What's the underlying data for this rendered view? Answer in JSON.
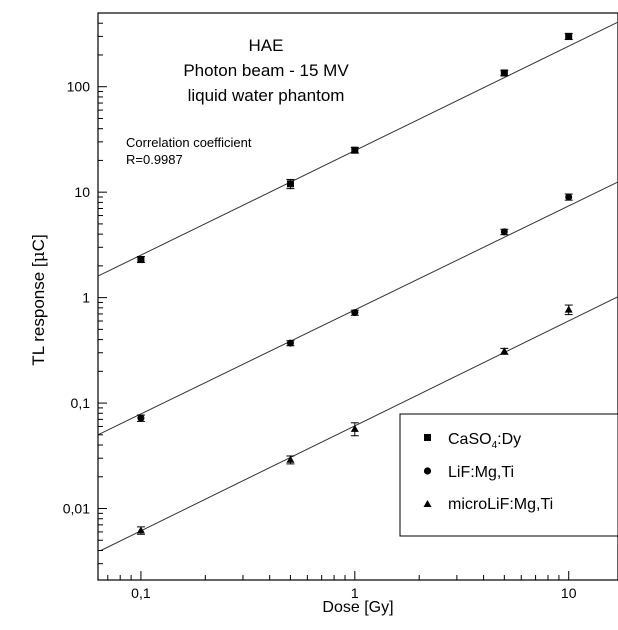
{
  "chart_data": {
    "type": "scatter",
    "title": "",
    "annotation_lines": [
      "HAE",
      "Photon beam - 15 MV",
      "liquid water phantom"
    ],
    "correlation_lines": [
      "Correlation coefficient",
      "R=0.9987"
    ],
    "xlabel": "Dose [Gy]",
    "ylabel_prefix": "TL response [",
    "ylabel_mu": "μ",
    "ylabel_suffix": "C]",
    "x_scale": "log",
    "y_scale": "log",
    "xlim": [
      0.063,
      17
    ],
    "ylim": [
      0.0021,
      500
    ],
    "x_ticks": [
      {
        "value": 0.1,
        "label": "0,1"
      },
      {
        "value": 1,
        "label": "1"
      },
      {
        "value": 10,
        "label": "10"
      }
    ],
    "y_ticks": [
      {
        "value": 0.01,
        "label": "0,01"
      },
      {
        "value": 0.1,
        "label": "0,1"
      },
      {
        "value": 1,
        "label": "1"
      },
      {
        "value": 10,
        "label": "10"
      },
      {
        "value": 100,
        "label": "100"
      }
    ],
    "grid": false,
    "legend_position": "bottom-right",
    "series": [
      {
        "name": "CaSO4:Dy",
        "legend_main": "CaSO",
        "legend_sub": "4",
        "legend_tail": ":Dy",
        "marker": "square",
        "x": [
          0.1,
          0.5,
          1,
          5,
          10
        ],
        "y": [
          2.3,
          12,
          25,
          135,
          300
        ],
        "err": [
          0.15,
          1.2,
          1.5,
          8,
          20
        ],
        "fit": {
          "x": [
            0.063,
            17
          ],
          "y": [
            1.6,
            410
          ]
        }
      },
      {
        "name": "LiF:Mg,Ti",
        "marker": "circle",
        "x": [
          0.1,
          0.5,
          1,
          5,
          10
        ],
        "y": [
          0.072,
          0.37,
          0.72,
          4.2,
          9
        ],
        "err": [
          0.005,
          0.02,
          0.04,
          0.25,
          0.6
        ],
        "fit": {
          "x": [
            0.063,
            17
          ],
          "y": [
            0.05,
            12.5
          ]
        }
      },
      {
        "name": "microLiF:Mg,Ti",
        "marker": "triangle",
        "x": [
          0.1,
          0.5,
          1,
          5,
          10
        ],
        "y": [
          0.0062,
          0.029,
          0.057,
          0.31,
          0.77
        ],
        "err": [
          0.0005,
          0.0025,
          0.008,
          0.02,
          0.08
        ],
        "fit": {
          "x": [
            0.065,
            17
          ],
          "y": [
            0.004,
            1.02
          ]
        }
      }
    ]
  }
}
